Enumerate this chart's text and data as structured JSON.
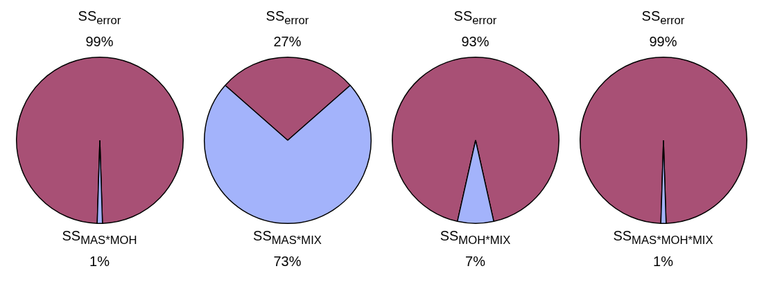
{
  "chart_data": [
    {
      "type": "pie",
      "categories": [
        "SS$_{error}$",
        "SS$_{MAS*MOH}$"
      ],
      "values": [
        99,
        1
      ],
      "value_labels": [
        "99%",
        "1%"
      ],
      "colors": [
        "#a85075",
        "#a3b3fb"
      ],
      "legend": false
    },
    {
      "type": "pie",
      "categories": [
        "SS$_{error}$",
        "SS$_{MAS*MIX}$"
      ],
      "values": [
        27,
        73
      ],
      "value_labels": [
        "27%",
        "73%"
      ],
      "colors": [
        "#a85075",
        "#a3b3fb"
      ],
      "legend": false
    },
    {
      "type": "pie",
      "categories": [
        "SS$_{error}$",
        "SS$_{MOH*MIX}$"
      ],
      "values": [
        93,
        7
      ],
      "value_labels": [
        "93%",
        "7%"
      ],
      "colors": [
        "#a85075",
        "#a3b3fb"
      ],
      "legend": false
    },
    {
      "type": "pie",
      "categories": [
        "SS$_{error}$",
        "SS$_{MAS*MOH*MIX}$"
      ],
      "values": [
        99,
        1
      ],
      "value_labels": [
        "99%",
        "1%"
      ],
      "colors": [
        "#a85075",
        "#a3b3fb"
      ],
      "legend": false
    }
  ]
}
